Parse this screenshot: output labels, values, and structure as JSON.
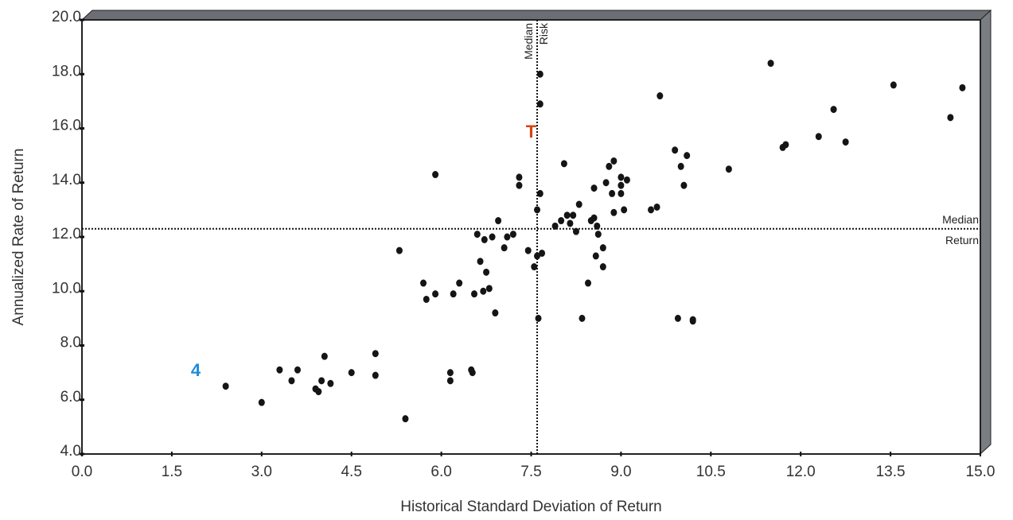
{
  "chart_data": {
    "type": "scatter",
    "title": "",
    "xlabel": "Historical Standard Deviation of Return",
    "ylabel": "Annualized Rate of Return",
    "xlim": [
      0,
      15
    ],
    "ylim": [
      4,
      20
    ],
    "x_ticks": [
      "0.0",
      "1.5",
      "3.0",
      "4.5",
      "6.0",
      "7.5",
      "9.0",
      "10.5",
      "12.0",
      "13.5",
      "15.0"
    ],
    "y_ticks": [
      "4.0",
      "6.0",
      "8.0",
      "10.0",
      "12.0",
      "14.0",
      "16.0",
      "18.0",
      "20.0"
    ],
    "grid": false,
    "median_risk": {
      "value": 7.6,
      "label_line1": "Median",
      "label_line2": "Risk"
    },
    "median_return": {
      "value": 12.3,
      "label_line1": "Median",
      "label_line2": "Return"
    },
    "markers": [
      {
        "label": "T",
        "x": 7.5,
        "y": 15.9,
        "color": "#d8420f"
      },
      {
        "label": "4",
        "x": 1.9,
        "y": 7.1,
        "color": "#1f8dd6"
      }
    ],
    "series": [
      {
        "points": [
          [
            2.4,
            6.5
          ],
          [
            3.0,
            5.9
          ],
          [
            3.3,
            7.1
          ],
          [
            3.5,
            6.7
          ],
          [
            3.6,
            7.1
          ],
          [
            3.9,
            6.4
          ],
          [
            3.95,
            6.3
          ],
          [
            4.0,
            6.7
          ],
          [
            4.05,
            7.6
          ],
          [
            4.15,
            6.6
          ],
          [
            4.5,
            7.0
          ],
          [
            4.9,
            6.9
          ],
          [
            4.9,
            7.7
          ],
          [
            5.3,
            11.5
          ],
          [
            5.4,
            5.3
          ],
          [
            5.7,
            10.3
          ],
          [
            5.75,
            9.7
          ],
          [
            5.9,
            9.9
          ],
          [
            5.9,
            14.3
          ],
          [
            6.15,
            7.0
          ],
          [
            6.15,
            6.7
          ],
          [
            6.2,
            9.9
          ],
          [
            6.3,
            10.3
          ],
          [
            6.5,
            7.1
          ],
          [
            6.52,
            7.0
          ],
          [
            6.55,
            9.9
          ],
          [
            6.6,
            12.1
          ],
          [
            6.65,
            11.1
          ],
          [
            6.7,
            10.0
          ],
          [
            6.72,
            11.9
          ],
          [
            6.75,
            10.7
          ],
          [
            6.8,
            10.1
          ],
          [
            6.85,
            12.0
          ],
          [
            6.9,
            9.2
          ],
          [
            6.95,
            12.6
          ],
          [
            7.05,
            11.6
          ],
          [
            7.1,
            12.0
          ],
          [
            7.2,
            12.1
          ],
          [
            7.3,
            14.2
          ],
          [
            7.3,
            13.9
          ],
          [
            7.45,
            11.5
          ],
          [
            7.55,
            10.9
          ],
          [
            7.6,
            13.0
          ],
          [
            7.6,
            11.3
          ],
          [
            7.62,
            9.0
          ],
          [
            7.65,
            18.0
          ],
          [
            7.65,
            16.9
          ],
          [
            7.65,
            13.6
          ],
          [
            7.68,
            11.4
          ],
          [
            7.9,
            12.4
          ],
          [
            8.0,
            12.6
          ],
          [
            8.05,
            14.7
          ],
          [
            8.1,
            12.8
          ],
          [
            8.15,
            12.5
          ],
          [
            8.2,
            12.8
          ],
          [
            8.25,
            12.2
          ],
          [
            8.3,
            13.2
          ],
          [
            8.35,
            9.0
          ],
          [
            8.45,
            10.3
          ],
          [
            8.5,
            12.6
          ],
          [
            8.55,
            13.8
          ],
          [
            8.55,
            12.7
          ],
          [
            8.58,
            11.3
          ],
          [
            8.6,
            12.4
          ],
          [
            8.62,
            12.1
          ],
          [
            8.7,
            11.6
          ],
          [
            8.7,
            10.9
          ],
          [
            8.75,
            14.0
          ],
          [
            8.8,
            14.6
          ],
          [
            8.85,
            13.6
          ],
          [
            8.88,
            14.8
          ],
          [
            8.88,
            12.9
          ],
          [
            9.0,
            14.2
          ],
          [
            9.0,
            13.9
          ],
          [
            9.0,
            13.6
          ],
          [
            9.05,
            13.0
          ],
          [
            9.1,
            14.1
          ],
          [
            9.5,
            13.0
          ],
          [
            9.6,
            13.1
          ],
          [
            9.65,
            17.2
          ],
          [
            9.9,
            15.2
          ],
          [
            9.95,
            9.0
          ],
          [
            10.0,
            14.6
          ],
          [
            10.05,
            13.9
          ],
          [
            10.1,
            15.0
          ],
          [
            10.2,
            8.9
          ],
          [
            10.2,
            8.95
          ],
          [
            10.8,
            14.5
          ],
          [
            11.5,
            18.4
          ],
          [
            11.7,
            15.3
          ],
          [
            11.75,
            15.4
          ],
          [
            12.3,
            15.7
          ],
          [
            12.55,
            16.7
          ],
          [
            12.75,
            15.5
          ],
          [
            13.55,
            17.6
          ],
          [
            14.5,
            16.4
          ],
          [
            14.7,
            17.5
          ]
        ]
      }
    ]
  }
}
